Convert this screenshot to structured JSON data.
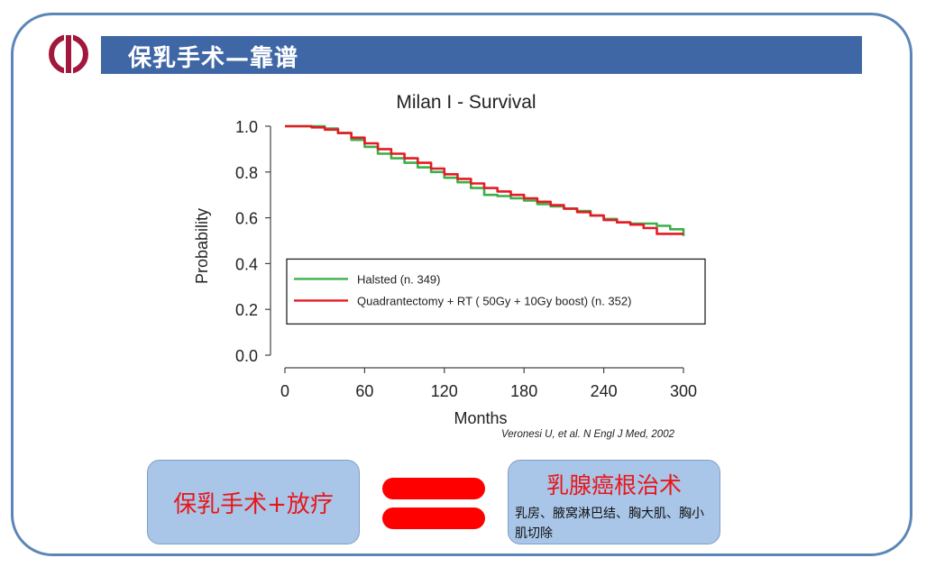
{
  "slide": {
    "title": "保乳手术—靠谱",
    "citation": "Veronesi U, et al. N Engl J Med, 2002",
    "left_box_text": "保乳手术+放疗",
    "right_box_title": "乳腺癌根治术",
    "right_box_subtext": "乳房、腋窝淋巴结、胸大肌、胸小肌切除",
    "logo_icon": "hospital-logo-icon",
    "colors": {
      "frame": "#5b86b8",
      "title_bar": "#3f67a6",
      "box_fill": "#a9c6e8",
      "accent_red": "#e8161b"
    }
  },
  "chart_data": {
    "type": "line",
    "title": "Milan I - Survival",
    "xlabel": "Months",
    "ylabel": "Probability",
    "xlim": [
      0,
      300
    ],
    "ylim": [
      0,
      1.0
    ],
    "xticks": [
      0,
      60,
      120,
      180,
      240,
      300
    ],
    "yticks": [
      "0.0",
      "0.2",
      "0.4",
      "0.6",
      "0.8",
      "1.0"
    ],
    "legend_position": "lower-center",
    "series": [
      {
        "name": "Halsted (n. 349)",
        "color": "#3cb04a",
        "x": [
          0,
          10,
          20,
          30,
          40,
          50,
          60,
          70,
          80,
          90,
          100,
          110,
          120,
          130,
          140,
          150,
          160,
          170,
          180,
          190,
          200,
          210,
          220,
          230,
          240,
          250,
          260,
          270,
          280,
          290,
          300
        ],
        "y": [
          1.0,
          1.0,
          1.0,
          0.99,
          0.97,
          0.94,
          0.91,
          0.88,
          0.86,
          0.84,
          0.82,
          0.8,
          0.775,
          0.755,
          0.73,
          0.7,
          0.695,
          0.685,
          0.675,
          0.66,
          0.65,
          0.64,
          0.63,
          0.61,
          0.595,
          0.58,
          0.575,
          0.575,
          0.565,
          0.55,
          0.52
        ]
      },
      {
        "name": "Quadrantectomy + RT ( 50Gy + 10Gy boost) (n. 352)",
        "color": "#e51b24",
        "x": [
          0,
          10,
          20,
          30,
          40,
          50,
          60,
          70,
          80,
          90,
          100,
          110,
          120,
          130,
          140,
          150,
          160,
          170,
          180,
          190,
          200,
          210,
          220,
          230,
          240,
          250,
          260,
          270,
          280,
          290,
          300
        ],
        "y": [
          1.0,
          1.0,
          0.995,
          0.985,
          0.97,
          0.95,
          0.925,
          0.9,
          0.88,
          0.86,
          0.84,
          0.815,
          0.79,
          0.77,
          0.75,
          0.73,
          0.715,
          0.7,
          0.685,
          0.67,
          0.655,
          0.64,
          0.625,
          0.61,
          0.59,
          0.58,
          0.57,
          0.555,
          0.53,
          0.53,
          0.53
        ]
      }
    ]
  }
}
